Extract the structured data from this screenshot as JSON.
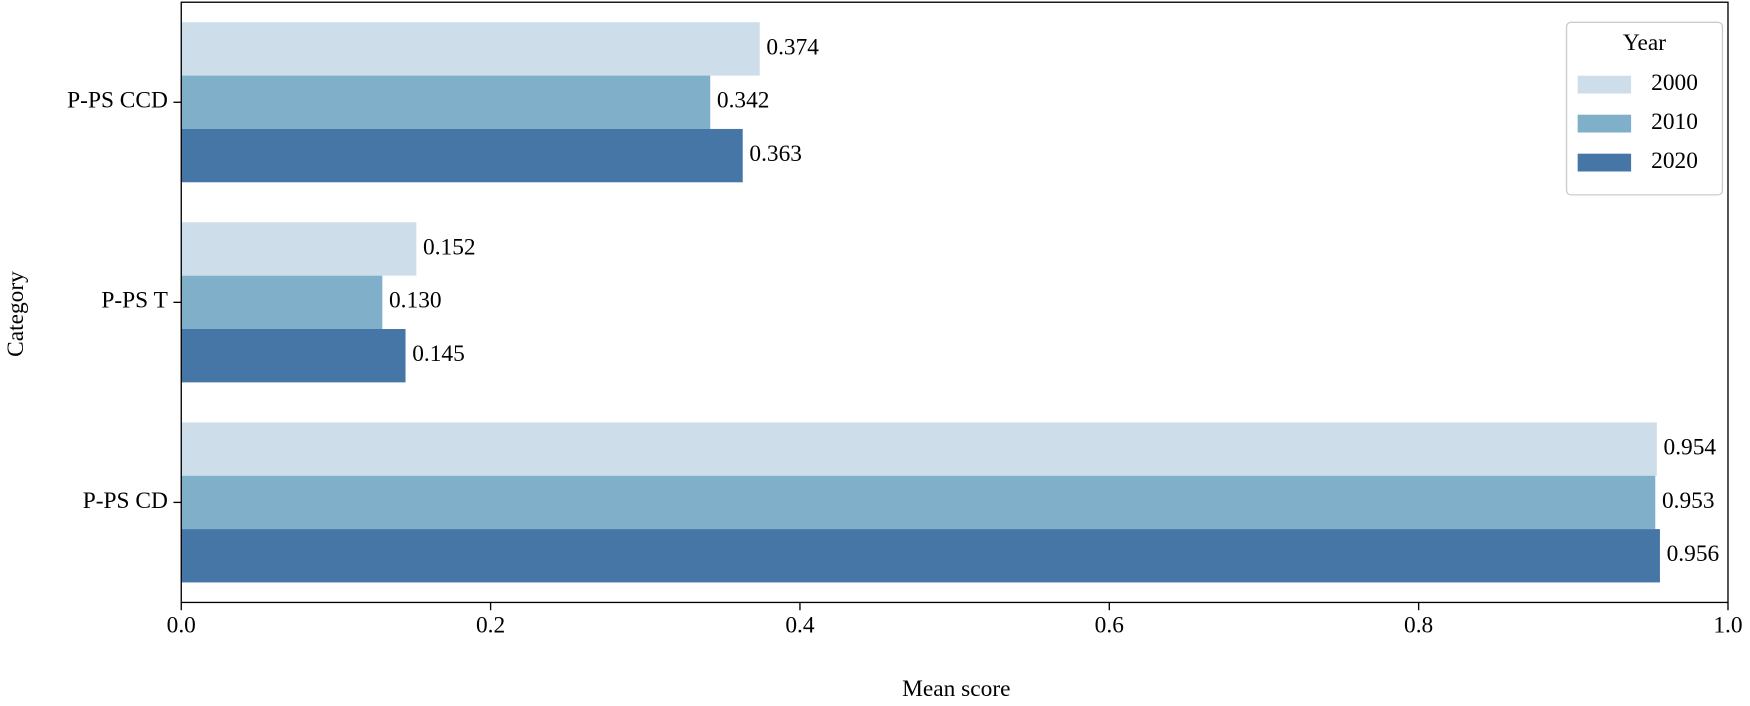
{
  "chart_data": {
    "type": "barh",
    "xlabel": "Mean score",
    "ylabel": "Category",
    "categories": [
      "P-PS CCD",
      "P-PS T",
      "P-PS CD"
    ],
    "series": [
      {
        "name": "2000",
        "color": "#cddeea",
        "values": [
          0.374,
          0.152,
          0.954
        ],
        "value_labels": [
          "0.374",
          "0.152",
          "0.954"
        ]
      },
      {
        "name": "2010",
        "color": "#7fafc9",
        "values": [
          0.342,
          0.13,
          0.953
        ],
        "value_labels": [
          "0.342",
          "0.130",
          "0.953"
        ]
      },
      {
        "name": "2020",
        "color": "#4676a5",
        "values": [
          0.363,
          0.145,
          0.956
        ],
        "value_labels": [
          "0.363",
          "0.145",
          "0.956"
        ]
      }
    ],
    "legend_title": "Year",
    "legend_loc": "upper right",
    "xlim": [
      0,
      1
    ],
    "xticks": [
      {
        "value": 0,
        "label": "0.0"
      },
      0.2,
      0.4,
      0.6,
      0.8,
      {
        "value": 1,
        "label": "1.0"
      }
    ],
    "grid": false
  }
}
